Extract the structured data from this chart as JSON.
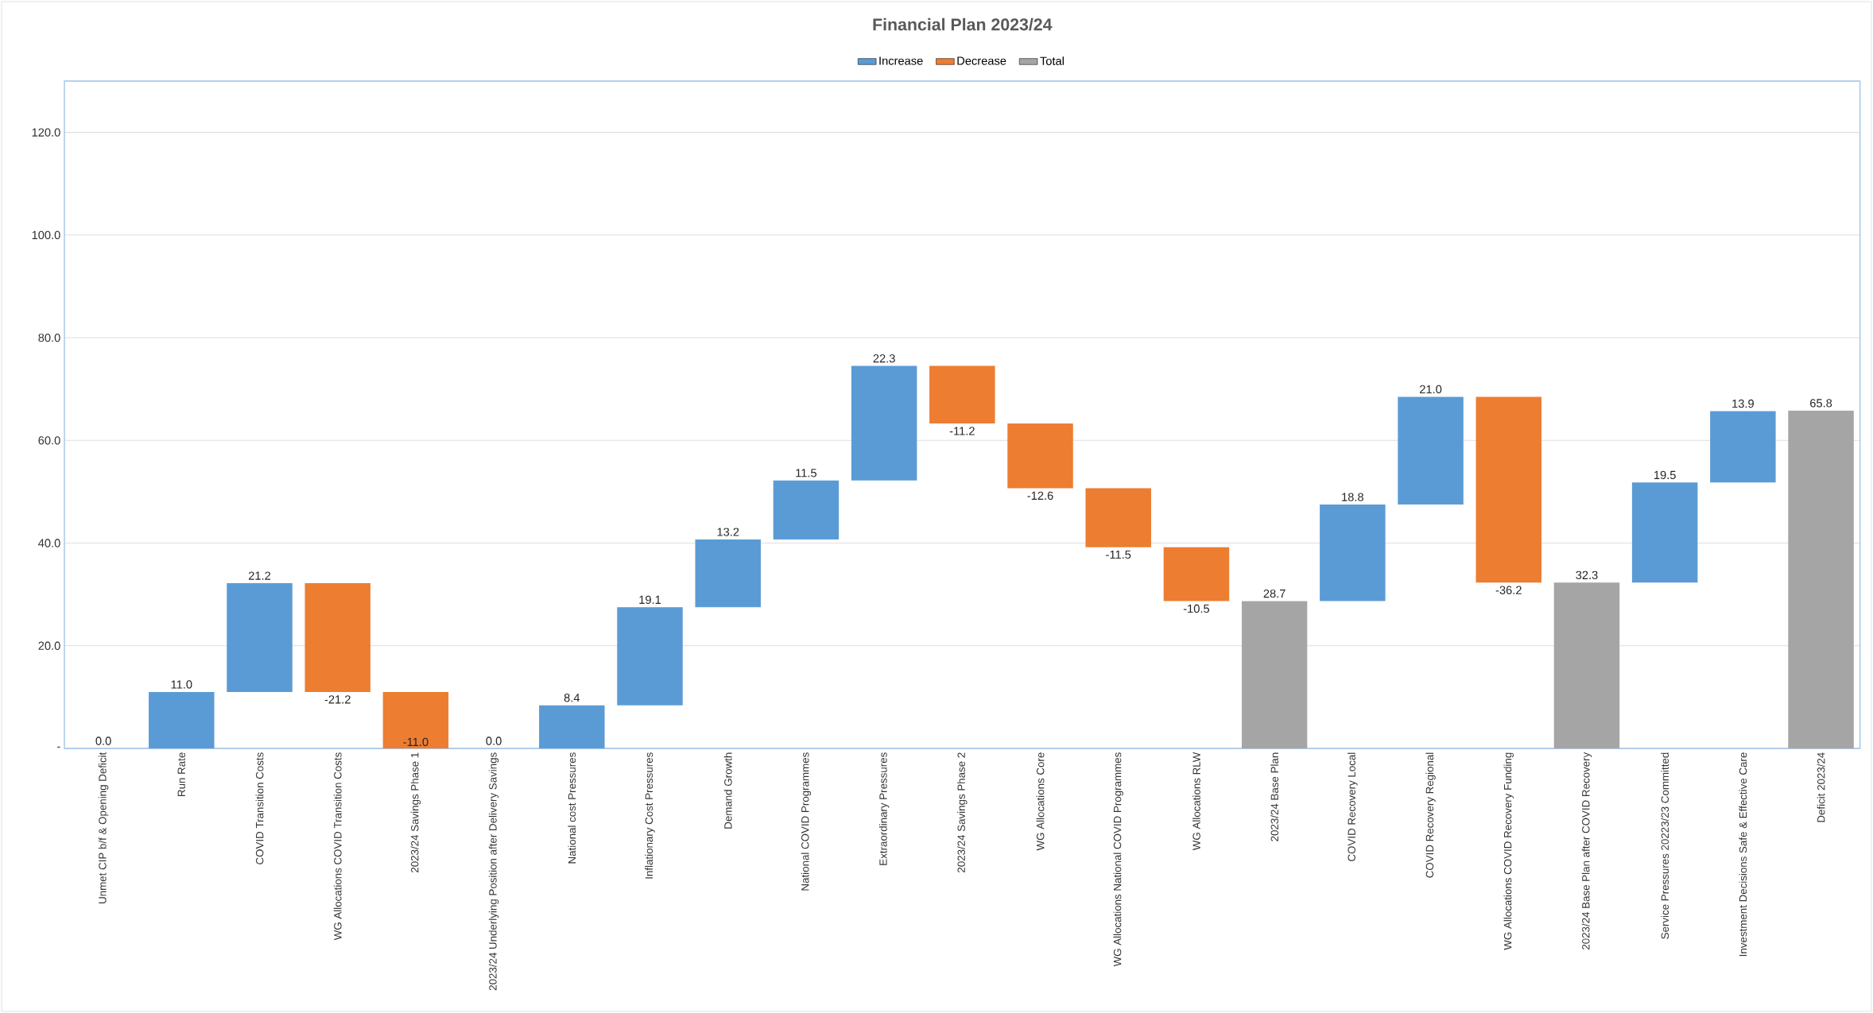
{
  "chart_data": {
    "type": "bar",
    "title": "Financial Plan 2023/24",
    "categories": [
      "Unmet CIP b/f & Opening Deficit",
      "Run Rate",
      "COVID Transition Costs",
      "WG Allocations COVID Transition Costs",
      "2023/24 Savings Phase 1",
      "2023/24 Underlying Position after Delivery Savings",
      "National cost Pressures",
      "Inflationary Cost Pressures",
      "Demand Growth",
      "National COVID Programmes",
      "Extraordinary Pressures",
      "2023/24 Savings Phase 2",
      "WG Allocations Core",
      "WG Allocations National COVID Programmes",
      "WG Allocations RLW",
      "2023/24 Base Plan",
      "COVID Recovery Local",
      "COVID Recovery Regional",
      "WG Allocations COVID Recovery Funding",
      "2023/24 Base Plan after COVID Recovery",
      "Service Pressures 20223/23 Committed",
      "Investment Decisions Safe & Effective Care",
      "Deficit 2023/24"
    ],
    "series": [
      {
        "name": "Increase",
        "color": "#5b9bd5",
        "values": [
          0.0,
          11.0,
          21.2,
          null,
          null,
          0.0,
          8.4,
          19.1,
          13.2,
          11.5,
          22.3,
          null,
          null,
          null,
          null,
          null,
          18.8,
          21.0,
          null,
          null,
          19.5,
          13.9,
          null
        ],
        "base": [
          null,
          0,
          11.0,
          null,
          null,
          null,
          0,
          8.4,
          27.5,
          40.7,
          52.2,
          null,
          null,
          null,
          null,
          null,
          28.7,
          47.5,
          null,
          null,
          32.3,
          51.8,
          null
        ],
        "value_labels": [
          "0.0",
          "11.0",
          "21.2",
          null,
          null,
          "0.0",
          "8.4",
          "19.1",
          "13.2",
          "11.5",
          "22.3",
          null,
          null,
          null,
          null,
          null,
          "18.8",
          "21.0",
          null,
          null,
          "19.5",
          "13.9",
          null
        ]
      },
      {
        "name": "Decrease",
        "color": "#ed7d31",
        "values": [
          null,
          null,
          null,
          -21.2,
          -11.0,
          null,
          null,
          null,
          null,
          null,
          null,
          -11.2,
          -12.6,
          -11.5,
          -10.5,
          null,
          null,
          null,
          -36.2,
          null,
          null,
          null,
          null
        ],
        "base": [
          null,
          null,
          null,
          32.2,
          11.0,
          null,
          null,
          null,
          null,
          null,
          null,
          74.5,
          63.3,
          50.7,
          39.2,
          null,
          null,
          null,
          68.5,
          null,
          null,
          null,
          null
        ],
        "value_labels": [
          null,
          null,
          null,
          "-21.2",
          "-11.0",
          null,
          null,
          null,
          null,
          null,
          null,
          "-11.2",
          "-12.6",
          "-11.5",
          "-10.5",
          null,
          null,
          null,
          "-36.2",
          null,
          null,
          null,
          null
        ]
      },
      {
        "name": "Total",
        "color": "#a5a5a5",
        "values": [
          null,
          null,
          null,
          null,
          null,
          null,
          null,
          null,
          null,
          null,
          null,
          null,
          null,
          null,
          null,
          28.7,
          null,
          null,
          null,
          32.3,
          null,
          null,
          65.8
        ],
        "value_labels": [
          null,
          null,
          null,
          null,
          null,
          null,
          null,
          null,
          null,
          null,
          null,
          null,
          null,
          null,
          null,
          "28.7",
          null,
          null,
          null,
          "32.3",
          null,
          null,
          "65.8"
        ]
      }
    ],
    "ylim": [
      0,
      130
    ],
    "yticks": [
      {
        "value": 0,
        "label": "-"
      },
      {
        "value": 20,
        "label": "20.0"
      },
      {
        "value": 40,
        "label": "40.0"
      },
      {
        "value": 60,
        "label": "60.0"
      },
      {
        "value": 80,
        "label": "80.0"
      },
      {
        "value": 100,
        "label": "100.0"
      },
      {
        "value": 120,
        "label": "120.0"
      }
    ],
    "grid": "y",
    "legend": "top"
  }
}
